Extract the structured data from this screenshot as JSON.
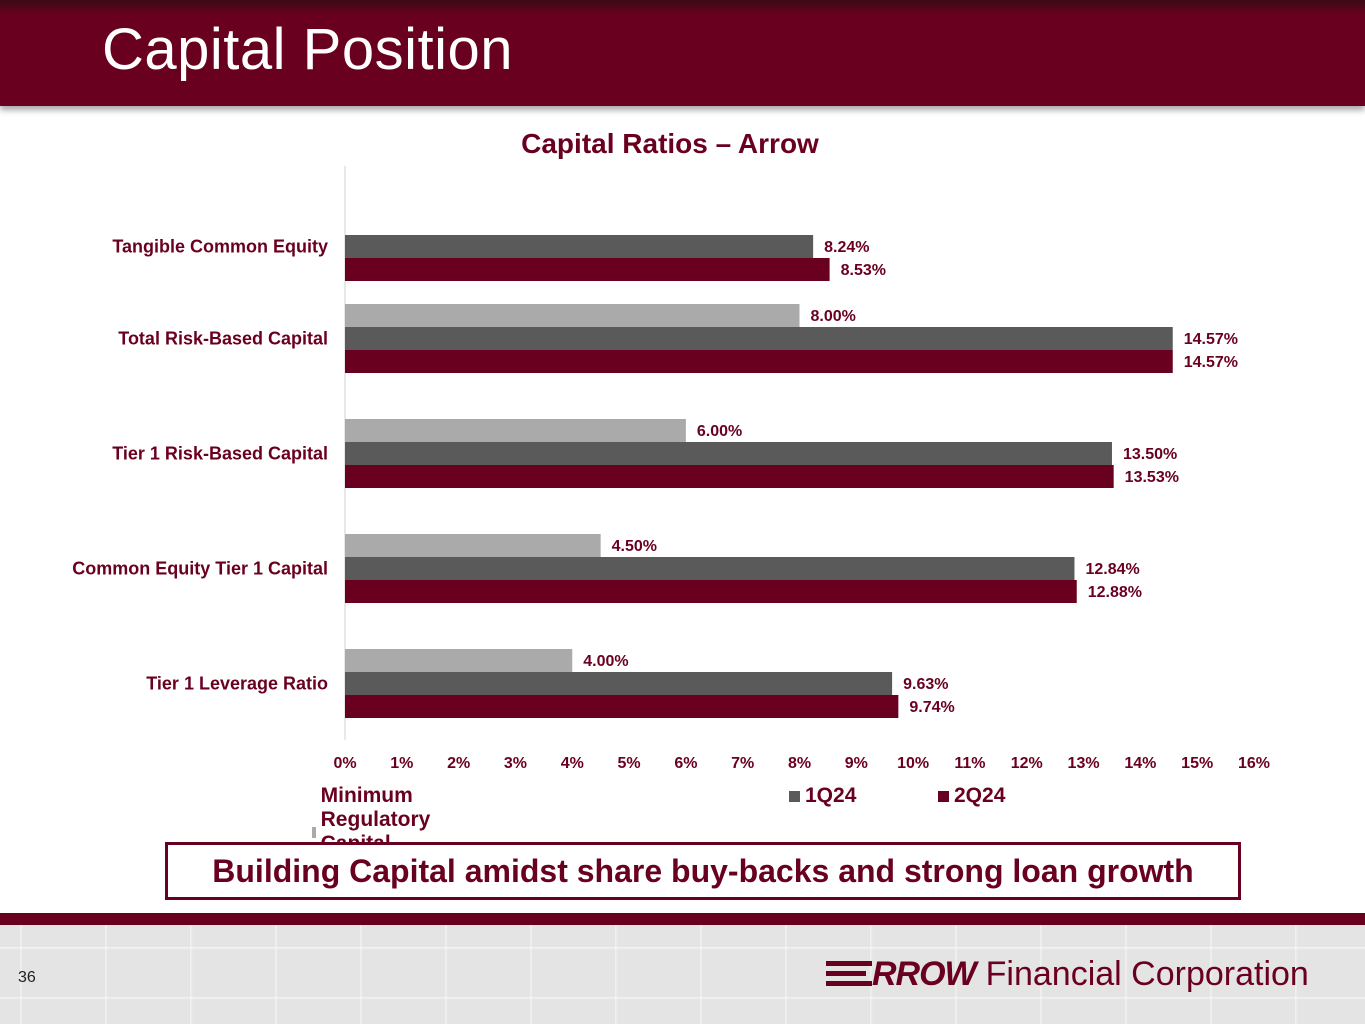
{
  "header": {
    "title": "Capital Position"
  },
  "footer": {
    "page_number": "36",
    "logo_word": "RROW",
    "logo_rest": "Financial Corporation"
  },
  "callout": {
    "text": "Building Capital amidst share buy-backs and strong loan growth"
  },
  "colors": {
    "brand": "#6a0020",
    "minimum": "#aaaaaa",
    "q1": "#5a5a5a",
    "q2": "#6a0020"
  },
  "chart_data": {
    "type": "bar",
    "orientation": "horizontal",
    "title": "Capital Ratios – Arrow",
    "categories": [
      "Tangible Common Equity",
      "Total Risk-Based Capital",
      "Tier 1 Risk-Based Capital",
      "Common Equity Tier 1 Capital",
      "Tier 1 Leverage Ratio"
    ],
    "series": [
      {
        "name": "Minimum Regulatory Capital Ratios",
        "values": [
          null,
          8.0,
          6.0,
          4.5,
          4.0
        ],
        "labels": [
          "",
          "8.00%",
          "6.00%",
          "4.50%",
          "4.00%"
        ]
      },
      {
        "name": "1Q24",
        "values": [
          8.24,
          14.57,
          13.5,
          12.84,
          9.63
        ],
        "labels": [
          "8.24%",
          "14.57%",
          "13.50%",
          "12.84%",
          "9.63%"
        ]
      },
      {
        "name": "2Q24",
        "values": [
          8.53,
          14.57,
          13.53,
          12.88,
          9.74
        ],
        "labels": [
          "8.53%",
          "14.57%",
          "13.53%",
          "12.88%",
          "9.74%"
        ]
      }
    ],
    "xlim": [
      0,
      16
    ],
    "xticks": [
      "0%",
      "1%",
      "2%",
      "3%",
      "4%",
      "5%",
      "6%",
      "7%",
      "8%",
      "9%",
      "10%",
      "11%",
      "12%",
      "13%",
      "14%",
      "15%",
      "16%"
    ],
    "legend": "bottom"
  }
}
